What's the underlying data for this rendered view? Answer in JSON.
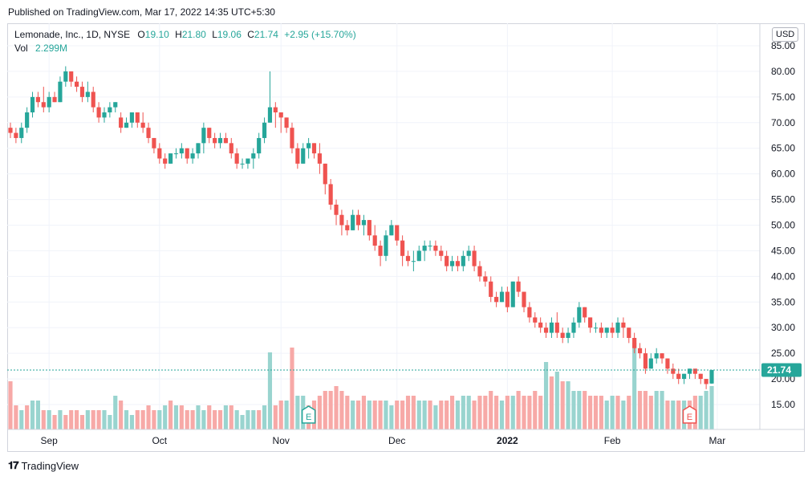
{
  "published": "Published on TradingView.com, Mar 17, 2022 14:35 UTC+5:30",
  "footer": {
    "brand": "TradingView"
  },
  "legend": {
    "symbol": "Lemonade, Inc., 1D, NYSE",
    "open_label": "O",
    "open": "19.10",
    "high_label": "H",
    "high": "21.80",
    "low_label": "L",
    "low": "19.06",
    "close_label": "C",
    "close": "21.74",
    "change": "+2.95 (+15.70%)",
    "vol_label": "Vol",
    "vol": "2.299M"
  },
  "currency": "USD",
  "last_price_label": "21.74",
  "colors": {
    "up": "#26a69a",
    "down": "#ef5350",
    "up_vol": "#99d4cf",
    "down_vol": "#f7a9a7",
    "grid": "#f0f3fa",
    "last_line": "#26a69a"
  },
  "chart_data": {
    "type": "candlestick",
    "y_ticks": [
      "85.00",
      "80.00",
      "75.00",
      "70.00",
      "65.00",
      "60.00",
      "55.00",
      "50.00",
      "45.00",
      "40.00",
      "35.00",
      "30.00",
      "25.00",
      "20.00",
      "15.00"
    ],
    "ylim": [
      15,
      85
    ],
    "x_ticks": [
      {
        "label": "Sep",
        "index": 7
      },
      {
        "label": "Oct",
        "index": 27
      },
      {
        "label": "Nov",
        "index": 49
      },
      {
        "label": "Dec",
        "index": 70
      },
      {
        "label": "2022",
        "index": 90
      },
      {
        "label": "Feb",
        "index": 109
      },
      {
        "label": "Mar",
        "index": 128
      }
    ],
    "earnings": [
      {
        "label": "E",
        "index": 54,
        "type": "up"
      },
      {
        "label": "E",
        "index": 123,
        "type": "down"
      }
    ],
    "candles": [
      [
        69,
        70,
        67,
        68
      ],
      [
        68,
        69,
        66,
        67
      ],
      [
        67,
        70,
        66,
        69
      ],
      [
        69,
        73,
        68,
        72
      ],
      [
        72,
        76,
        71,
        75
      ],
      [
        75,
        76,
        73,
        74
      ],
      [
        74,
        77,
        72,
        73
      ],
      [
        73,
        76,
        72,
        75
      ],
      [
        75,
        76,
        74,
        74
      ],
      [
        74,
        79,
        74,
        78
      ],
      [
        78,
        81,
        77,
        80
      ],
      [
        80,
        80,
        77,
        78
      ],
      [
        78,
        79,
        76,
        77
      ],
      [
        77,
        78,
        74,
        75
      ],
      [
        75,
        78,
        74,
        76
      ],
      [
        76,
        77,
        72,
        73
      ],
      [
        73,
        74,
        70,
        71
      ],
      [
        71,
        73,
        70,
        72
      ],
      [
        72,
        74,
        71,
        73
      ],
      [
        73,
        74,
        72,
        74
      ],
      [
        71,
        72,
        68,
        69
      ],
      [
        69,
        71,
        69,
        70
      ],
      [
        70,
        72,
        69,
        72
      ],
      [
        72,
        72,
        69,
        70
      ],
      [
        70,
        72,
        68,
        69
      ],
      [
        69,
        70,
        66,
        67
      ],
      [
        67,
        67,
        64,
        65
      ],
      [
        65,
        66,
        62,
        63
      ],
      [
        63,
        64,
        61,
        62
      ],
      [
        62,
        64,
        62,
        64
      ],
      [
        64,
        65,
        63,
        64
      ],
      [
        64,
        66,
        63,
        65
      ],
      [
        65,
        65,
        62,
        63
      ],
      [
        63,
        65,
        62,
        64
      ],
      [
        64,
        66,
        63,
        66
      ],
      [
        66,
        70,
        64,
        69
      ],
      [
        69,
        69,
        66,
        67
      ],
      [
        67,
        68,
        65,
        66
      ],
      [
        66,
        68,
        65,
        67
      ],
      [
        67,
        68,
        66,
        66
      ],
      [
        66,
        67,
        63,
        64
      ],
      [
        64,
        65,
        61,
        62
      ],
      [
        62,
        63,
        61,
        62
      ],
      [
        62,
        63,
        61,
        63
      ],
      [
        63,
        65,
        61,
        64
      ],
      [
        64,
        68,
        63,
        67
      ],
      [
        67,
        71,
        66,
        70
      ],
      [
        70,
        80,
        70,
        73
      ],
      [
        73,
        74,
        69,
        72
      ],
      [
        72,
        72,
        68,
        71
      ],
      [
        71,
        71,
        68,
        69
      ],
      [
        69,
        70,
        64,
        65
      ],
      [
        65,
        66,
        61,
        62
      ],
      [
        62,
        66,
        62,
        65
      ],
      [
        65,
        67,
        63,
        66
      ],
      [
        66,
        66,
        63,
        64
      ],
      [
        64,
        66,
        60,
        62
      ],
      [
        62,
        62,
        56,
        58
      ],
      [
        58,
        59,
        53,
        54
      ],
      [
        54,
        55,
        50,
        52
      ],
      [
        52,
        53,
        48,
        50
      ],
      [
        50,
        51,
        48,
        49
      ],
      [
        49,
        53,
        49,
        52
      ],
      [
        52,
        53,
        49,
        50
      ],
      [
        50,
        52,
        48,
        51
      ],
      [
        51,
        51,
        47,
        48
      ],
      [
        48,
        50,
        45,
        46
      ],
      [
        46,
        47,
        42,
        44
      ],
      [
        44,
        49,
        43,
        48
      ],
      [
        48,
        51,
        48,
        50
      ],
      [
        50,
        50,
        46,
        47
      ],
      [
        47,
        48,
        42,
        44
      ],
      [
        44,
        45,
        42,
        43
      ],
      [
        43,
        45,
        41,
        43
      ],
      [
        43,
        46,
        43,
        45
      ],
      [
        45,
        47,
        43,
        46
      ],
      [
        46,
        47,
        45,
        46
      ],
      [
        46,
        47,
        44,
        45
      ],
      [
        45,
        46,
        43,
        44
      ],
      [
        44,
        45,
        41,
        42
      ],
      [
        42,
        44,
        41,
        43
      ],
      [
        43,
        44,
        41,
        42
      ],
      [
        42,
        45,
        41,
        44
      ],
      [
        44,
        46,
        43,
        45
      ],
      [
        45,
        46,
        41,
        42
      ],
      [
        42,
        43,
        39,
        40
      ],
      [
        40,
        41,
        38,
        39
      ],
      [
        39,
        40,
        35,
        36
      ],
      [
        36,
        37,
        34,
        35
      ],
      [
        35,
        38,
        35,
        37
      ],
      [
        37,
        38,
        33,
        34
      ],
      [
        34,
        39,
        34,
        39
      ],
      [
        39,
        40,
        36,
        37
      ],
      [
        37,
        37,
        33,
        34
      ],
      [
        34,
        35,
        31,
        32
      ],
      [
        32,
        33,
        30,
        31
      ],
      [
        31,
        32,
        29,
        30
      ],
      [
        30,
        31,
        28,
        29
      ],
      [
        29,
        32,
        28,
        31
      ],
      [
        31,
        33,
        28,
        29
      ],
      [
        29,
        30,
        27,
        28
      ],
      [
        28,
        30,
        27,
        29
      ],
      [
        29,
        32,
        28,
        31
      ],
      [
        31,
        35,
        30,
        34
      ],
      [
        34,
        34,
        31,
        32
      ],
      [
        32,
        32,
        29,
        30
      ],
      [
        30,
        31,
        29,
        30
      ],
      [
        30,
        31,
        28,
        29
      ],
      [
        29,
        30,
        28,
        30
      ],
      [
        30,
        31,
        28,
        29
      ],
      [
        29,
        32,
        28,
        31
      ],
      [
        31,
        32,
        28,
        30
      ],
      [
        30,
        30,
        27,
        28
      ],
      [
        28,
        29,
        25,
        26
      ],
      [
        26,
        27,
        24,
        25
      ],
      [
        25,
        26,
        21,
        22
      ],
      [
        22,
        25,
        22,
        24
      ],
      [
        24,
        26,
        23,
        25
      ],
      [
        25,
        25,
        23,
        24
      ],
      [
        24,
        24,
        21,
        22
      ],
      [
        22,
        23,
        20,
        21
      ],
      [
        21,
        22,
        19,
        20
      ],
      [
        20,
        21,
        19,
        21
      ],
      [
        21,
        22,
        20,
        22
      ],
      [
        22,
        22,
        20,
        21
      ],
      [
        21,
        21,
        19,
        20
      ],
      [
        20,
        20,
        18,
        19
      ],
      [
        19.1,
        21.8,
        19.06,
        21.74
      ]
    ],
    "volume": [
      [
        10,
        "d"
      ],
      [
        5,
        "d"
      ],
      [
        4,
        "u"
      ],
      [
        5,
        "d"
      ],
      [
        6,
        "u"
      ],
      [
        6,
        "u"
      ],
      [
        4,
        "d"
      ],
      [
        4,
        "u"
      ],
      [
        3,
        "d"
      ],
      [
        4,
        "u"
      ],
      [
        3,
        "d"
      ],
      [
        4,
        "d"
      ],
      [
        4,
        "d"
      ],
      [
        3,
        "d"
      ],
      [
        4,
        "u"
      ],
      [
        4,
        "d"
      ],
      [
        4,
        "d"
      ],
      [
        4,
        "u"
      ],
      [
        3,
        "u"
      ],
      [
        7,
        "u"
      ],
      [
        6,
        "d"
      ],
      [
        4,
        "u"
      ],
      [
        3,
        "u"
      ],
      [
        4,
        "d"
      ],
      [
        4,
        "d"
      ],
      [
        5,
        "d"
      ],
      [
        4,
        "d"
      ],
      [
        4,
        "u"
      ],
      [
        5,
        "u"
      ],
      [
        6,
        "d"
      ],
      [
        5,
        "u"
      ],
      [
        5,
        "d"
      ],
      [
        4,
        "d"
      ],
      [
        4,
        "d"
      ],
      [
        5,
        "u"
      ],
      [
        4,
        "u"
      ],
      [
        5,
        "d"
      ],
      [
        4,
        "d"
      ],
      [
        4,
        "d"
      ],
      [
        5,
        "u"
      ],
      [
        5,
        "d"
      ],
      [
        4,
        "u"
      ],
      [
        3,
        "u"
      ],
      [
        4,
        "u"
      ],
      [
        4,
        "u"
      ],
      [
        4,
        "d"
      ],
      [
        5,
        "u"
      ],
      [
        16,
        "u"
      ],
      [
        5,
        "d"
      ],
      [
        6,
        "d"
      ],
      [
        6,
        "u"
      ],
      [
        17,
        "d"
      ],
      [
        7,
        "u"
      ],
      [
        7,
        "u"
      ],
      [
        5,
        "d"
      ],
      [
        6,
        "d"
      ],
      [
        7,
        "d"
      ],
      [
        8,
        "d"
      ],
      [
        8,
        "d"
      ],
      [
        9,
        "d"
      ],
      [
        8,
        "d"
      ],
      [
        7,
        "d"
      ],
      [
        6,
        "u"
      ],
      [
        6,
        "d"
      ],
      [
        7,
        "d"
      ],
      [
        6,
        "u"
      ],
      [
        6,
        "d"
      ],
      [
        6,
        "d"
      ],
      [
        6,
        "u"
      ],
      [
        5,
        "u"
      ],
      [
        6,
        "d"
      ],
      [
        6,
        "d"
      ],
      [
        7,
        "d"
      ],
      [
        7,
        "d"
      ],
      [
        6,
        "u"
      ],
      [
        6,
        "u"
      ],
      [
        6,
        "d"
      ],
      [
        5,
        "u"
      ],
      [
        6,
        "d"
      ],
      [
        6,
        "d"
      ],
      [
        7,
        "d"
      ],
      [
        6,
        "u"
      ],
      [
        7,
        "u"
      ],
      [
        7,
        "u"
      ],
      [
        6,
        "d"
      ],
      [
        7,
        "d"
      ],
      [
        7,
        "d"
      ],
      [
        8,
        "d"
      ],
      [
        7,
        "d"
      ],
      [
        6,
        "u"
      ],
      [
        7,
        "d"
      ],
      [
        7,
        "u"
      ],
      [
        8,
        "d"
      ],
      [
        7,
        "d"
      ],
      [
        7,
        "d"
      ],
      [
        8,
        "d"
      ],
      [
        7,
        "d"
      ],
      [
        14,
        "u"
      ],
      [
        11,
        "d"
      ],
      [
        12,
        "u"
      ],
      [
        10,
        "d"
      ],
      [
        10,
        "u"
      ],
      [
        8,
        "u"
      ],
      [
        8,
        "u"
      ],
      [
        8,
        "d"
      ],
      [
        7,
        "d"
      ],
      [
        7,
        "d"
      ],
      [
        7,
        "d"
      ],
      [
        6,
        "u"
      ],
      [
        7,
        "u"
      ],
      [
        7,
        "d"
      ],
      [
        6,
        "u"
      ],
      [
        7,
        "d"
      ],
      [
        18,
        "u"
      ],
      [
        8,
        "d"
      ],
      [
        8,
        "d"
      ],
      [
        7,
        "d"
      ],
      [
        8,
        "u"
      ],
      [
        8,
        "u"
      ],
      [
        6,
        "d"
      ],
      [
        6,
        "u"
      ],
      [
        6,
        "d"
      ],
      [
        6,
        "u"
      ],
      [
        6,
        "d"
      ],
      [
        7,
        "d"
      ],
      [
        7,
        "u"
      ],
      [
        8,
        "u"
      ],
      [
        9,
        "u"
      ]
    ]
  }
}
